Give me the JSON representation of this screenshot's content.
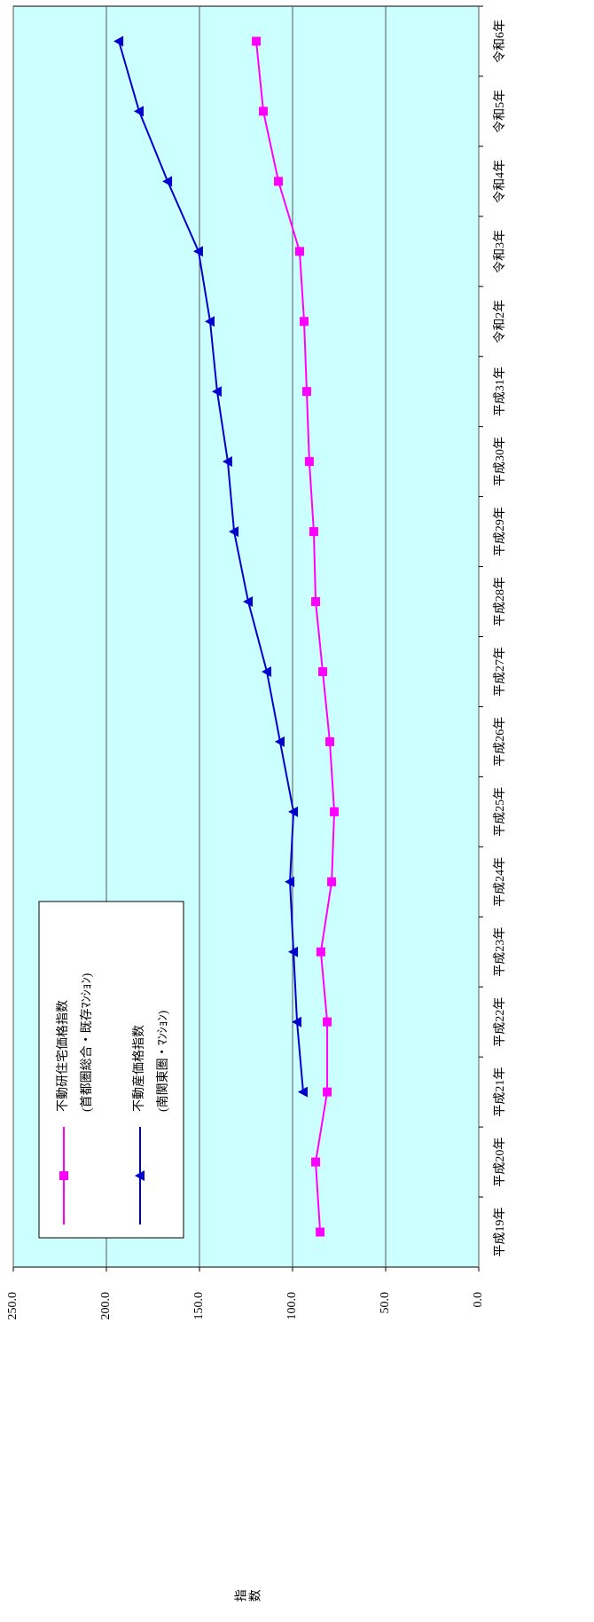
{
  "chart_data": {
    "type": "line",
    "y_axis_label": "指数",
    "categories": [
      "平成19年",
      "平成20年",
      "平成21年",
      "平成22年",
      "平成23年",
      "平成24年",
      "平成25年",
      "平成26年",
      "平成27年",
      "平成28年",
      "平成29年",
      "平成30年",
      "平成31年",
      "令和2年",
      "令和3年",
      "令和4年",
      "令和5年",
      "令和6年"
    ],
    "series": [
      {
        "name": "不動研住宅価格指数",
        "name_detail": "(首都圏総合・既存ﾏﾝｼｮﾝ)",
        "color": "#ff00ff",
        "marker": "square",
        "values": [
          85.2,
          87.6,
          81.4,
          81.4,
          84.8,
          79.0,
          77.6,
          80.0,
          83.8,
          87.6,
          88.6,
          91.0,
          92.4,
          93.8,
          96.2,
          107.6,
          115.7,
          119.5
        ]
      },
      {
        "name": "不動産価格指数",
        "name_detail": "(南関東圏・ﾏﾝｼｮﾝ)",
        "color": "#0000cc",
        "marker": "triangle",
        "values": [
          null,
          null,
          94.3,
          97.6,
          99.5,
          101.4,
          99.5,
          106.7,
          113.8,
          123.8,
          131.4,
          134.8,
          140.5,
          144.3,
          150.5,
          167.1,
          182.4,
          193.3
        ]
      }
    ],
    "ylim": [
      0,
      250
    ],
    "yticks": [
      {
        "value": 0,
        "label": "0.0"
      },
      {
        "value": 50,
        "label": "50.0"
      },
      {
        "value": 100,
        "label": "100.0"
      },
      {
        "value": 150,
        "label": "150.0"
      },
      {
        "value": 200,
        "label": "200.0"
      },
      {
        "value": 250,
        "label": "250.0"
      }
    ],
    "grid": true,
    "plot_background": "#ccffff"
  }
}
